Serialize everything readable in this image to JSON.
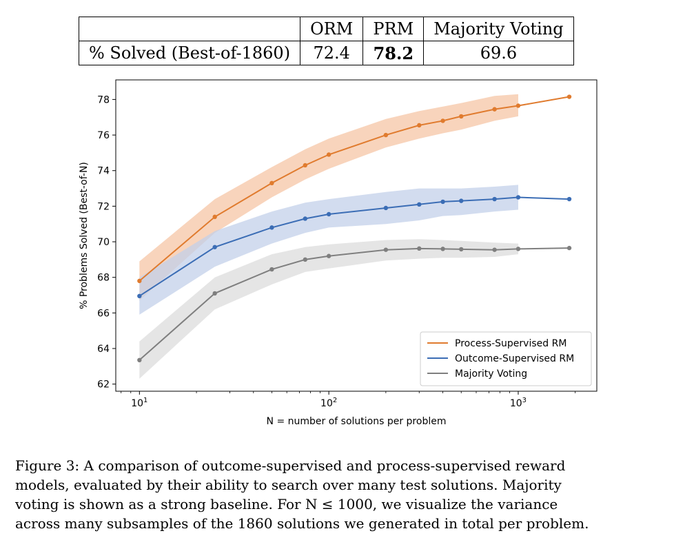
{
  "table": {
    "headers": [
      "",
      "ORM",
      "PRM",
      "Majority Voting"
    ],
    "row_label": "% Solved (Best-of-1860)",
    "values": [
      "72.4",
      "78.2",
      "69.6"
    ]
  },
  "chart_data": {
    "type": "line",
    "xscale": "log",
    "xlabel": "N = number of solutions per problem",
    "ylabel": "% Problems Solved (Best-of-N)",
    "ylim": [
      61.6,
      79.1
    ],
    "xlim": [
      7.5,
      2600
    ],
    "yticks": [
      62,
      64,
      66,
      68,
      70,
      72,
      74,
      76,
      78
    ],
    "xticks": [
      {
        "value": 10,
        "base": "10",
        "exp": "1"
      },
      {
        "value": 100,
        "base": "10",
        "exp": "2"
      },
      {
        "value": 1000,
        "base": "10",
        "exp": "3"
      }
    ],
    "legend_position": "lower-right",
    "series": [
      {
        "name": "Process-Supervised RM",
        "color": "#e07b2e",
        "band_color": "#f5c6a5",
        "x": [
          10,
          25,
          50,
          75,
          100,
          200,
          300,
          400,
          500,
          750,
          1000,
          1860
        ],
        "y": [
          67.8,
          71.4,
          73.3,
          74.3,
          74.9,
          76.0,
          76.55,
          76.8,
          77.05,
          77.45,
          77.65,
          78.15
        ],
        "band_lower": [
          66.7,
          70.5,
          72.5,
          73.5,
          74.1,
          75.3,
          75.8,
          76.1,
          76.3,
          76.8,
          77.05
        ],
        "band_upper": [
          68.9,
          72.4,
          74.2,
          75.2,
          75.8,
          76.9,
          77.35,
          77.6,
          77.8,
          78.2,
          78.3
        ]
      },
      {
        "name": "Outcome-Supervised RM",
        "color": "#3b6db5",
        "band_color": "#c3d0ea",
        "x": [
          10,
          25,
          50,
          75,
          100,
          200,
          300,
          400,
          500,
          750,
          1000,
          1860
        ],
        "y": [
          66.95,
          69.7,
          70.8,
          71.3,
          71.55,
          71.9,
          72.1,
          72.25,
          72.3,
          72.4,
          72.5,
          72.4
        ],
        "band_lower": [
          65.9,
          68.6,
          69.9,
          70.5,
          70.8,
          71.0,
          71.2,
          71.45,
          71.5,
          71.7,
          71.8
        ],
        "band_upper": [
          68.0,
          70.6,
          71.7,
          72.2,
          72.4,
          72.8,
          73.0,
          73.0,
          73.0,
          73.1,
          73.2
        ]
      },
      {
        "name": "Majority Voting",
        "color": "#7f7f7f",
        "band_color": "#dcdcdc",
        "x": [
          10,
          25,
          50,
          75,
          100,
          200,
          300,
          400,
          500,
          750,
          1000,
          1860
        ],
        "y": [
          63.35,
          67.1,
          68.45,
          69.0,
          69.2,
          69.55,
          69.62,
          69.6,
          69.58,
          69.55,
          69.6,
          69.65
        ],
        "band_lower": [
          62.3,
          66.2,
          67.6,
          68.3,
          68.5,
          68.95,
          69.05,
          69.1,
          69.1,
          69.15,
          69.3
        ],
        "band_upper": [
          64.4,
          68.0,
          69.3,
          69.7,
          69.85,
          70.1,
          70.15,
          70.1,
          70.05,
          69.95,
          69.9
        ]
      }
    ]
  },
  "caption": {
    "lines": [
      "Figure 3: A comparison of outcome-supervised and process-supervised reward",
      "models, evaluated by their ability to search over many test solutions. Majority",
      "voting is shown as a strong baseline. For N ≤ 1000, we visualize the variance",
      "across many subsamples of the 1860 solutions we generated in total per problem."
    ]
  }
}
